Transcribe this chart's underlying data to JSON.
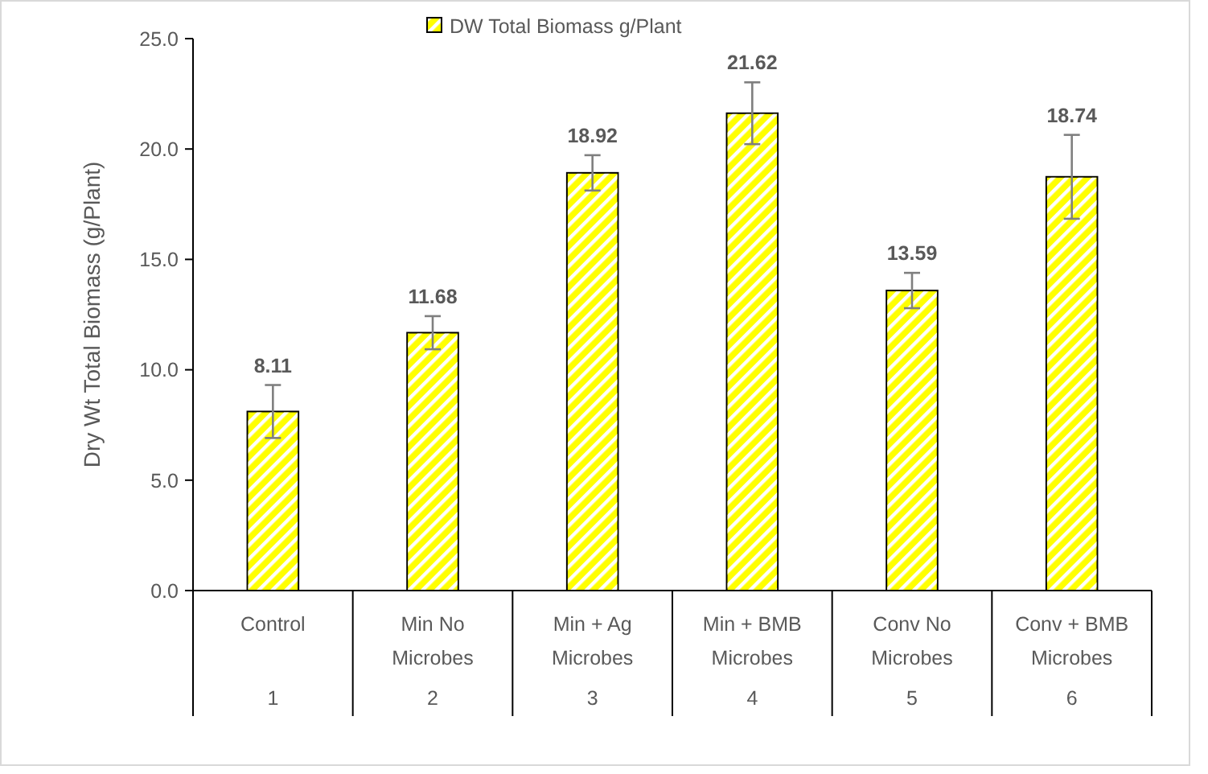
{
  "chart_data": {
    "type": "bar",
    "ylabel": "Dry Wt Total Biomass (g/Plant)",
    "categories": [
      "Control",
      "Min No Microbes",
      "Min + Ag Microbes",
      "Min + BMB Microbes",
      "Conv No Microbes",
      "Conv + BMB Microbes"
    ],
    "series": [
      {
        "name": "DW Total Biomass g/Plant",
        "color": "#ffff00",
        "values": [
          8.11,
          11.68,
          18.92,
          21.62,
          13.59,
          18.74
        ],
        "errors": [
          1.2,
          0.75,
          0.8,
          1.4,
          0.8,
          1.9
        ]
      }
    ],
    "data_labels": true,
    "ylim": [
      0,
      25
    ],
    "yticks": [
      {
        "value": 0,
        "label": "0.0"
      },
      {
        "value": 5,
        "label": "5.0"
      },
      {
        "value": 10,
        "label": "10.0"
      },
      {
        "value": 15,
        "label": "15.0"
      },
      {
        "value": 20,
        "label": "20.0"
      },
      {
        "value": 25,
        "label": "25.0"
      }
    ],
    "annotations": [
      "1",
      "2",
      "3",
      "4",
      "5",
      "6"
    ],
    "legend": "top",
    "grid": false
  }
}
